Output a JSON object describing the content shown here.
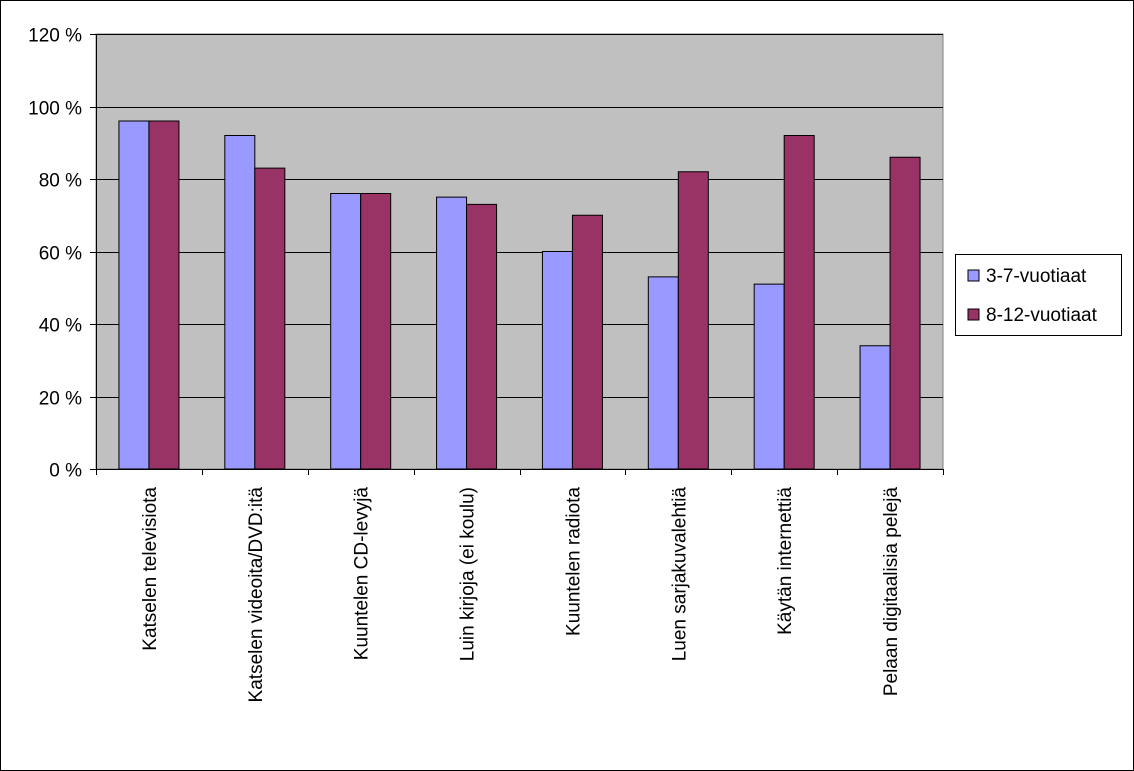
{
  "chart_data": {
    "type": "bar",
    "categories": [
      "Katselen televisiota",
      "Katselen videoita/DVD:itä",
      "Kuuntelen CD-levyjä",
      "Luin kirjoja (ei koulu)",
      "Kuuntelen radiota",
      "Luen sarjakuvalehtiä",
      "Käytän internettiä",
      "Pelaan digitaalisia pelejä"
    ],
    "series": [
      {
        "name": "3-7-vuotiaat",
        "color": "#9999ff",
        "values": [
          96,
          92,
          76,
          75,
          60,
          53,
          51,
          34
        ]
      },
      {
        "name": "8-12-vuotiaat",
        "color": "#993366",
        "values": [
          96,
          83,
          76,
          73,
          70,
          82,
          92,
          86
        ]
      }
    ],
    "y_ticks": [
      "0 %",
      "20 %",
      "40 %",
      "60 %",
      "80 %",
      "100 %",
      "120 %"
    ],
    "ylim": [
      0,
      120
    ],
    "y_step": 20,
    "plot_background": "#c0c0c0",
    "grid": true,
    "legend_position": "right"
  }
}
